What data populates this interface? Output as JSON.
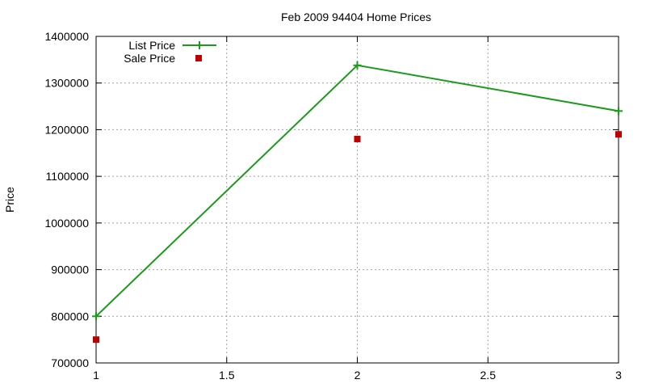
{
  "chart_data": {
    "type": "line",
    "title": "Feb 2009 94404 Home Prices",
    "xlabel": "",
    "ylabel": "Price",
    "xlim": [
      1,
      3
    ],
    "ylim": [
      700000,
      1400000
    ],
    "x_ticks": [
      "1",
      "1.5",
      "2",
      "2.5",
      "3"
    ],
    "x_tick_values": [
      1,
      1.5,
      2,
      2.5,
      3
    ],
    "y_ticks": [
      "700000",
      "800000",
      "900000",
      "1000000",
      "1100000",
      "1200000",
      "1300000",
      "1400000"
    ],
    "y_tick_values": [
      700000,
      800000,
      900000,
      1000000,
      1100000,
      1200000,
      1300000,
      1400000
    ],
    "grid": true,
    "legend_position": "top-left",
    "series": [
      {
        "name": "List Price",
        "style": "linespoints",
        "marker": "plus",
        "color": "#1a9b1a",
        "points": [
          [
            1,
            800000
          ],
          [
            2,
            1338000
          ],
          [
            3,
            1240000
          ]
        ]
      },
      {
        "name": "Sale Price",
        "style": "points",
        "marker": "square",
        "color": "#c00000",
        "points": [
          [
            1,
            750000
          ],
          [
            2,
            1180000
          ],
          [
            3,
            1190000
          ]
        ]
      }
    ]
  }
}
